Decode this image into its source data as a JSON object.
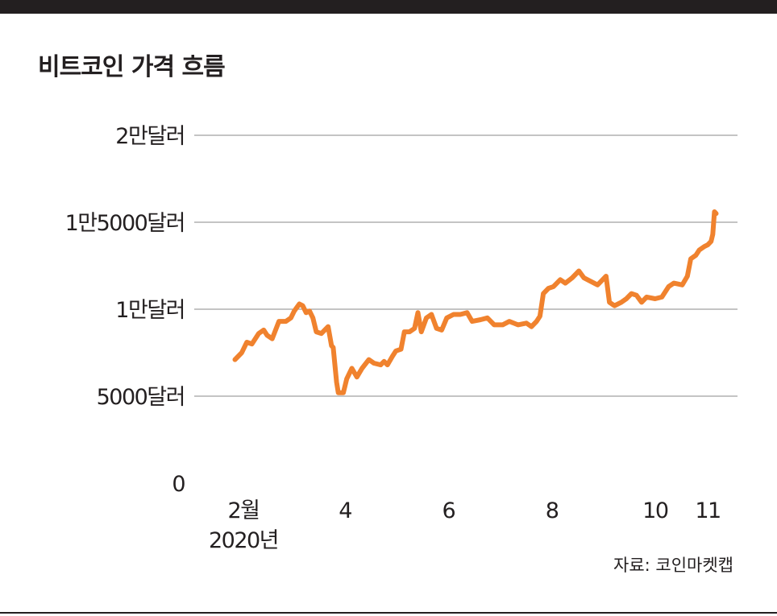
{
  "title": "비트코인 가격 흐름",
  "source": "자료: 코인마켓캡",
  "colors": {
    "line": "#f0822e",
    "grid": "#8a8a8a",
    "text": "#231f20",
    "bar": "#231f20"
  },
  "chart_data": {
    "type": "line",
    "title": "비트코인 가격 흐름",
    "ylim": [
      0,
      20000
    ],
    "y_ticks": [
      {
        "value": 0,
        "label": "0"
      },
      {
        "value": 5000,
        "label": "5000달러"
      },
      {
        "value": 10000,
        "label": "1만달러"
      },
      {
        "value": 15000,
        "label": "1만5000달러"
      },
      {
        "value": 20000,
        "label": "2만달러"
      }
    ],
    "x_ticks": [
      {
        "date": "2020-02-01",
        "label": "2월",
        "sublabel": "2020년"
      },
      {
        "date": "2020-04-01",
        "label": "4"
      },
      {
        "date": "2020-06-01",
        "label": "6"
      },
      {
        "date": "2020-08-01",
        "label": "8"
      },
      {
        "date": "2020-10-01",
        "label": "10"
      },
      {
        "date": "2020-11-01",
        "label": "11"
      }
    ],
    "grid": true,
    "series": [
      {
        "color": "#f0822e",
        "points": [
          [
            "2020-01-27",
            7100
          ],
          [
            "2020-01-31",
            7500
          ],
          [
            "2020-02-03",
            8100
          ],
          [
            "2020-02-06",
            8000
          ],
          [
            "2020-02-08",
            8300
          ],
          [
            "2020-02-10",
            8600
          ],
          [
            "2020-02-13",
            8800
          ],
          [
            "2020-02-15",
            8500
          ],
          [
            "2020-02-18",
            8300
          ],
          [
            "2020-02-22",
            9300
          ],
          [
            "2020-02-26",
            9300
          ],
          [
            "2020-02-29",
            9500
          ],
          [
            "2020-03-02",
            9900
          ],
          [
            "2020-03-05",
            10300
          ],
          [
            "2020-03-07",
            10200
          ],
          [
            "2020-03-09",
            9800
          ],
          [
            "2020-03-11",
            9900
          ],
          [
            "2020-03-13",
            9500
          ],
          [
            "2020-03-15",
            8700
          ],
          [
            "2020-03-18",
            8600
          ],
          [
            "2020-03-20",
            8800
          ],
          [
            "2020-03-22",
            9000
          ],
          [
            "2020-03-24",
            7900
          ],
          [
            "2020-03-25",
            7800
          ],
          [
            "2020-03-27",
            5800
          ],
          [
            "2020-03-28",
            5200
          ],
          [
            "2020-03-31",
            5200
          ],
          [
            "2020-04-02",
            6000
          ],
          [
            "2020-04-05",
            6600
          ],
          [
            "2020-04-08",
            6100
          ],
          [
            "2020-04-11",
            6600
          ],
          [
            "2020-04-15",
            7100
          ],
          [
            "2020-04-18",
            6900
          ],
          [
            "2020-04-22",
            6800
          ],
          [
            "2020-04-24",
            7000
          ],
          [
            "2020-04-26",
            6800
          ],
          [
            "2020-04-29",
            7300
          ],
          [
            "2020-05-01",
            7600
          ],
          [
            "2020-05-04",
            7700
          ],
          [
            "2020-05-06",
            8700
          ],
          [
            "2020-05-09",
            8700
          ],
          [
            "2020-05-12",
            8900
          ],
          [
            "2020-05-14",
            9800
          ],
          [
            "2020-05-16",
            8700
          ],
          [
            "2020-05-19",
            9500
          ],
          [
            "2020-05-22",
            9700
          ],
          [
            "2020-05-25",
            8900
          ],
          [
            "2020-05-28",
            8800
          ],
          [
            "2020-05-31",
            9500
          ],
          [
            "2020-06-04",
            9700
          ],
          [
            "2020-06-08",
            9700
          ],
          [
            "2020-06-12",
            9800
          ],
          [
            "2020-06-15",
            9300
          ],
          [
            "2020-06-20",
            9400
          ],
          [
            "2020-06-24",
            9500
          ],
          [
            "2020-06-28",
            9100
          ],
          [
            "2020-07-03",
            9100
          ],
          [
            "2020-07-07",
            9300
          ],
          [
            "2020-07-12",
            9100
          ],
          [
            "2020-07-17",
            9200
          ],
          [
            "2020-07-20",
            9000
          ],
          [
            "2020-07-23",
            9300
          ],
          [
            "2020-07-25",
            9600
          ],
          [
            "2020-07-27",
            10900
          ],
          [
            "2020-07-30",
            11200
          ],
          [
            "2020-08-02",
            11300
          ],
          [
            "2020-08-06",
            11700
          ],
          [
            "2020-08-09",
            11500
          ],
          [
            "2020-08-13",
            11800
          ],
          [
            "2020-08-17",
            12200
          ],
          [
            "2020-08-20",
            11800
          ],
          [
            "2020-08-24",
            11600
          ],
          [
            "2020-08-28",
            11400
          ],
          [
            "2020-08-31",
            11700
          ],
          [
            "2020-09-02",
            11900
          ],
          [
            "2020-09-04",
            10400
          ],
          [
            "2020-09-07",
            10200
          ],
          [
            "2020-09-11",
            10400
          ],
          [
            "2020-09-14",
            10600
          ],
          [
            "2020-09-17",
            10900
          ],
          [
            "2020-09-20",
            10800
          ],
          [
            "2020-09-23",
            10400
          ],
          [
            "2020-09-26",
            10700
          ],
          [
            "2020-10-01",
            10600
          ],
          [
            "2020-10-05",
            10700
          ],
          [
            "2020-10-09",
            11300
          ],
          [
            "2020-10-12",
            11500
          ],
          [
            "2020-10-17",
            11400
          ],
          [
            "2020-10-20",
            11900
          ],
          [
            "2020-10-22",
            12900
          ],
          [
            "2020-10-25",
            13100
          ],
          [
            "2020-10-27",
            13400
          ],
          [
            "2020-10-30",
            13600
          ],
          [
            "2020-11-01",
            13700
          ],
          [
            "2020-11-03",
            13900
          ],
          [
            "2020-11-04",
            14300
          ],
          [
            "2020-11-05",
            15600
          ],
          [
            "2020-11-06",
            15500
          ]
        ]
      }
    ]
  }
}
